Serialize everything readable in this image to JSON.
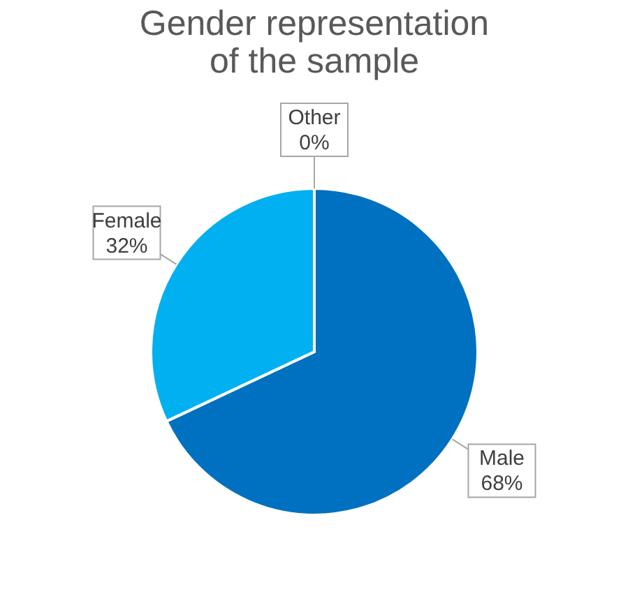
{
  "chart_data": {
    "type": "pie",
    "title": [
      "Gender representation",
      "of the sample"
    ],
    "categories": [
      "Male",
      "Female",
      "Other"
    ],
    "values": [
      68,
      32,
      0
    ],
    "colors": [
      "#0070c0",
      "#00b0f0",
      "#a5a5a5"
    ],
    "value_labels": [
      "68%",
      "32%",
      "0%"
    ],
    "legend": false
  }
}
